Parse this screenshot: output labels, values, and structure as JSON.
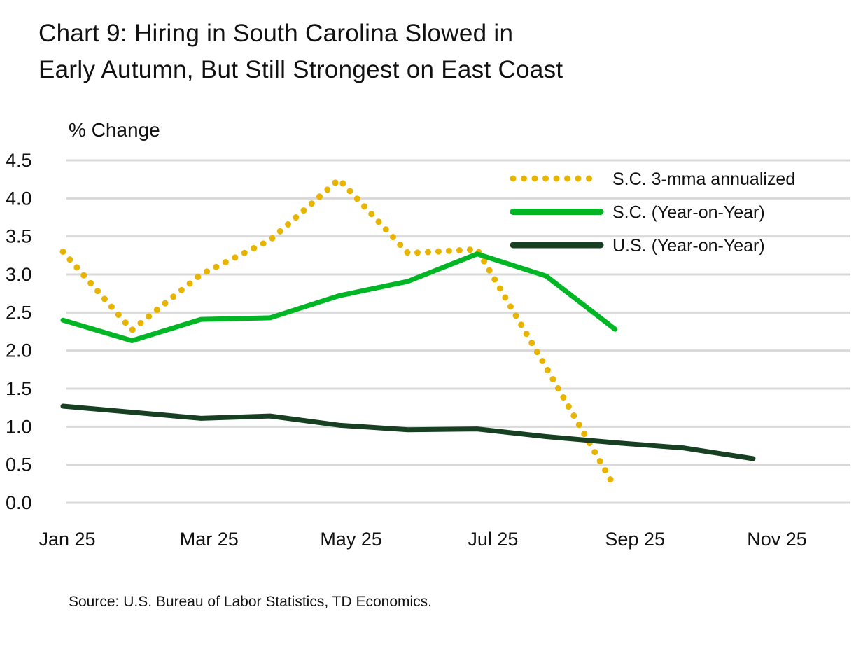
{
  "chart_data": {
    "type": "line",
    "title_lines": [
      "Chart 9: Hiring in South Carolina Slowed in",
      "Early Autumn, But Still Strongest on East Coast"
    ],
    "ylabel": "% Change",
    "xlabel": "",
    "source": "Source: U.S. Bureau of Labor Statistics, TD Economics.",
    "ylim": [
      0,
      4.5
    ],
    "yticks": [
      "0.0",
      "0.5",
      "1.0",
      "1.5",
      "2.0",
      "2.5",
      "3.0",
      "3.5",
      "4.0",
      "4.5"
    ],
    "grid": true,
    "legend_position": "top-right",
    "x": [
      "Jan 25",
      "Feb 25",
      "Mar 25",
      "Apr 25",
      "May 25",
      "Jun 25",
      "Jul 25",
      "Aug 25",
      "Sep 25",
      "Oct 25",
      "Nov 25"
    ],
    "xticks": [
      "Jan 25",
      "Mar 25",
      "May 25",
      "Jul 25",
      "Sep 25",
      "Nov 25"
    ],
    "series": [
      {
        "name": "S.C. 3-mma annualized",
        "color": "#E8B400",
        "style": "dotted",
        "values": [
          3.3,
          2.27,
          3.0,
          3.45,
          4.25,
          3.28,
          3.33,
          1.78,
          0.2,
          null,
          null
        ]
      },
      {
        "name": "S.C. (Year-on-Year)",
        "color": "#00B624",
        "style": "solid",
        "values": [
          2.4,
          2.13,
          2.41,
          2.43,
          2.72,
          2.91,
          3.27,
          2.98,
          2.28,
          null,
          null
        ]
      },
      {
        "name": "U.S. (Year-on-Year)",
        "color": "#173F22",
        "style": "solid",
        "values": [
          1.27,
          1.19,
          1.11,
          1.14,
          1.02,
          0.96,
          0.97,
          0.87,
          0.79,
          0.72,
          0.58
        ]
      }
    ]
  }
}
